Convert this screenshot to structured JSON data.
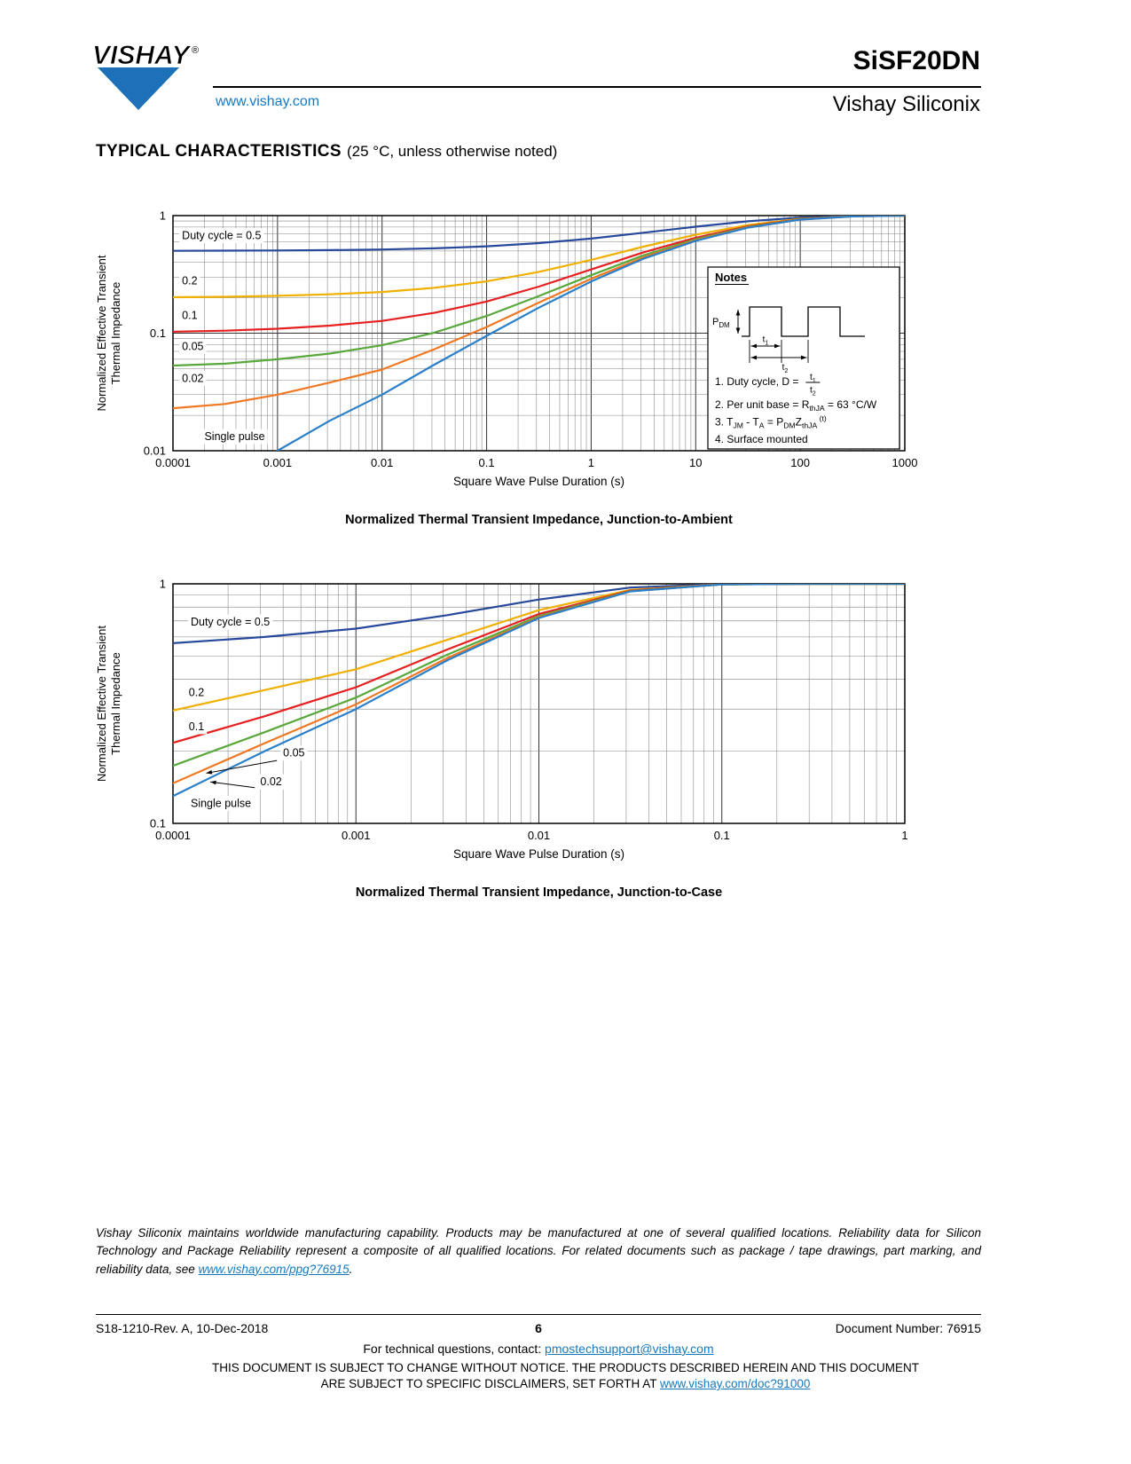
{
  "header": {
    "logo_text": "VISHAY",
    "logo_reg": "®",
    "website": "www.vishay.com",
    "product": "SiSF20DN",
    "brand": "Vishay Siliconix"
  },
  "section": {
    "title": "TYPICAL CHARACTERISTICS",
    "subtitle": "(25 °C, unless otherwise noted)"
  },
  "chart_data": [
    {
      "type": "line",
      "scale": "log-log",
      "title": "Normalized Thermal Transient Impedance, Junction-to-Ambient",
      "xlabel": "Square Wave Pulse Duration (s)",
      "ylabel": [
        "Normalized Effective Transient",
        "Thermal Impedance"
      ],
      "xlim": [
        0.0001,
        1000
      ],
      "ylim": [
        0.01,
        1
      ],
      "grid": true,
      "legend_position": "in-plot-labels",
      "x_ticks": [
        "0.0001",
        "0.001",
        "0.01",
        "0.1",
        "1",
        "10",
        "100",
        "1000"
      ],
      "y_ticks": [
        "0.01",
        "0.1",
        "1"
      ],
      "x": [
        0.0001,
        0.000316,
        0.001,
        0.00316,
        0.01,
        0.0316,
        0.1,
        0.316,
        1,
        3.16,
        10,
        31.6,
        100,
        316,
        1000
      ],
      "series": [
        {
          "name": "Duty cycle = 0.5",
          "color": "#27489b",
          "values": [
            0.502,
            0.503,
            0.505,
            0.509,
            0.515,
            0.527,
            0.548,
            0.583,
            0.638,
            0.715,
            0.805,
            0.895,
            0.963,
            0.993,
            1.0
          ]
        },
        {
          "name": "0.2",
          "color": "#f0b000",
          "values": [
            0.202,
            0.204,
            0.208,
            0.214,
            0.224,
            0.243,
            0.276,
            0.332,
            0.42,
            0.544,
            0.688,
            0.832,
            0.94,
            0.988,
            1.0
          ]
        },
        {
          "name": "0.1",
          "color": "#e62020",
          "values": [
            0.103,
            0.105,
            0.109,
            0.116,
            0.127,
            0.149,
            0.186,
            0.249,
            0.348,
            0.487,
            0.649,
            0.811,
            0.933,
            0.987,
            1.0
          ]
        },
        {
          "name": "0.05",
          "color": "#58a83c",
          "values": [
            0.053,
            0.055,
            0.06,
            0.067,
            0.079,
            0.101,
            0.14,
            0.207,
            0.311,
            0.459,
            0.63,
            0.801,
            0.929,
            0.986,
            1.0
          ]
        },
        {
          "name": "0.02",
          "color": "#f07822",
          "values": [
            0.023,
            0.025,
            0.03,
            0.038,
            0.049,
            0.073,
            0.113,
            0.182,
            0.29,
            0.441,
            0.618,
            0.794,
            0.927,
            0.985,
            1.0
          ]
        },
        {
          "name": "Single pulse",
          "color": "#2a7fc9",
          "values": [
            0.003,
            0.0055,
            0.01,
            0.018,
            0.03,
            0.054,
            0.095,
            0.165,
            0.275,
            0.43,
            0.61,
            0.79,
            0.925,
            0.985,
            1.0
          ]
        }
      ],
      "annotations": [
        {
          "text": "Duty cycle = 0.5",
          "x": 0.000122,
          "y": 0.63
        },
        {
          "text": "0.2",
          "x": 0.000122,
          "y": 0.26
        },
        {
          "text": "0.1",
          "x": 0.000122,
          "y": 0.132
        },
        {
          "text": "0.05",
          "x": 0.000122,
          "y": 0.072
        },
        {
          "text": "0.02",
          "x": 0.000122,
          "y": 0.0385
        },
        {
          "text": "Single pulse",
          "x": 0.0002,
          "y": 0.0123
        }
      ]
    },
    {
      "type": "line",
      "scale": "log-log",
      "title": "Normalized Thermal Transient Impedance, Junction-to-Case",
      "xlabel": "Square Wave Pulse Duration (s)",
      "ylabel": [
        "Normalized Effective Transient",
        "Thermal Impedance"
      ],
      "xlim": [
        0.0001,
        1
      ],
      "ylim": [
        0.1,
        1
      ],
      "grid": true,
      "legend_position": "in-plot-labels",
      "x_ticks": [
        "0.0001",
        "0.001",
        "0.01",
        "0.1",
        "1"
      ],
      "y_ticks": [
        "0.1",
        "1"
      ],
      "x": [
        0.0001,
        0.000316,
        0.001,
        0.00316,
        0.01,
        0.0316,
        0.1,
        0.316,
        1
      ],
      "series": [
        {
          "name": "Duty cycle = 0.5",
          "color": "#27489b",
          "values": [
            0.565,
            0.6,
            0.65,
            0.74,
            0.86,
            0.965,
            0.998,
            1.0,
            1.0
          ]
        },
        {
          "name": "0.2",
          "color": "#f0b000",
          "values": [
            0.296,
            0.36,
            0.44,
            0.584,
            0.776,
            0.944,
            0.996,
            1.0,
            1.0
          ]
        },
        {
          "name": "0.1",
          "color": "#e62020",
          "values": [
            0.217,
            0.28,
            0.37,
            0.532,
            0.748,
            0.937,
            0.996,
            1.0,
            1.0
          ]
        },
        {
          "name": "0.05",
          "color": "#58a83c",
          "values": [
            0.174,
            0.24,
            0.335,
            0.506,
            0.734,
            0.933,
            0.995,
            1.0,
            1.0
          ]
        },
        {
          "name": "0.02",
          "color": "#f07822",
          "values": [
            0.147,
            0.216,
            0.314,
            0.49,
            0.725,
            0.931,
            0.995,
            1.0,
            1.0
          ]
        },
        {
          "name": "Single pulse",
          "color": "#2a7fc9",
          "values": [
            0.13,
            0.2,
            0.3,
            0.48,
            0.72,
            0.93,
            0.995,
            1.0,
            1.0
          ]
        }
      ],
      "annotations": [
        {
          "text": "Duty cycle = 0.5",
          "x": 0.000125,
          "y": 0.67
        },
        {
          "text": "0.2",
          "x": 0.000122,
          "y": 0.34
        },
        {
          "text": "0.1",
          "x": 0.000122,
          "y": 0.245
        },
        {
          "text": "0.05",
          "x": 0.0004,
          "y": 0.19,
          "leader": [
            0.00037,
            0.183,
            0.000152,
            0.162
          ]
        },
        {
          "text": "0.02",
          "x": 0.0003,
          "y": 0.144,
          "leader": [
            0.00028,
            0.141,
            0.00016,
            0.149
          ]
        },
        {
          "text": "Single pulse",
          "x": 0.000125,
          "y": 0.117
        }
      ]
    }
  ],
  "notes_box": {
    "title": "Notes",
    "pdm_label": "P_{DM}",
    "t1_label": "t_{1}",
    "t2_label": "t_{2}",
    "line1_prefix": "1. Duty cycle, D =",
    "line1_num": "t_{1}",
    "line1_den": "t_{2}",
    "lines": [
      "2. Per unit base = R_{thJA} = 63 °C/W",
      "3. T_{JM} - T_{A} = P_{DM}Z_{thJA}^{ (t)}",
      "4. Surface mounted"
    ]
  },
  "footnote": {
    "text_before_link": "Vishay Siliconix maintains worldwide manufacturing capability. Products may be manufactured at one of several qualified locations. Reliability data for Silicon Technology and Package Reliability represent a composite of all qualified locations. For related documents such as package / tape drawings, part marking, and reliability data, see ",
    "link": "www.vishay.com/ppg?76915",
    "text_after_link": "."
  },
  "footer": {
    "revision": "S18-1210-Rev. A, 10-Dec-2018",
    "page_number": "6",
    "document_number": "Document Number: 76915",
    "contact_prefix": "For technical questions, contact: ",
    "contact_email": "pmostechsupport@vishay.com",
    "disclaimer_line1": "THIS DOCUMENT IS SUBJECT TO CHANGE WITHOUT NOTICE. THE PRODUCTS DESCRIBED HEREIN AND THIS DOCUMENT",
    "disclaimer_line2_prefix": "ARE SUBJECT TO SPECIFIC DISCLAIMERS, SET FORTH AT ",
    "disclaimer_link": "www.vishay.com/doc?91000"
  }
}
